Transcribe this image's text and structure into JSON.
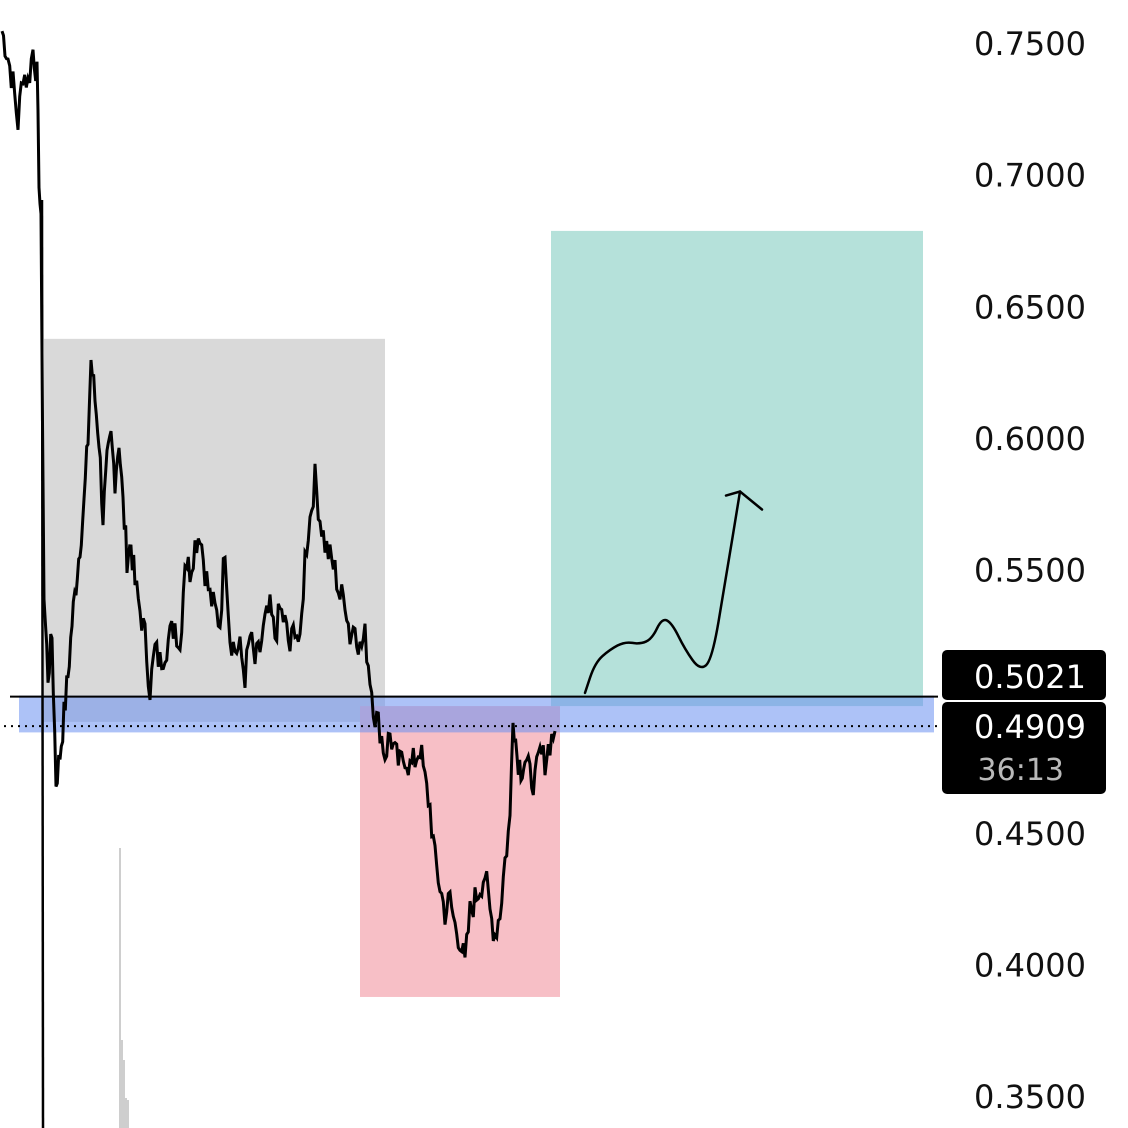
{
  "chart_data": {
    "type": "line",
    "y_axis": {
      "position": "right",
      "ticks": [
        "0.7500",
        "0.7000",
        "0.6500",
        "0.6000",
        "0.5500",
        "0.4500",
        "0.4000",
        "0.3500"
      ],
      "tick_values": [
        0.75,
        0.7,
        0.65,
        0.6,
        0.55,
        0.45,
        0.4,
        0.35
      ],
      "range": [
        0.34,
        0.765
      ]
    },
    "price_series": {
      "color": "#000000",
      "anchors": [
        [
          2,
          0.755
        ],
        [
          8,
          0.745
        ],
        [
          13,
          0.735
        ],
        [
          18,
          0.72
        ],
        [
          23,
          0.74
        ],
        [
          28,
          0.735
        ],
        [
          33,
          0.748
        ],
        [
          37,
          0.738
        ],
        [
          39,
          0.7
        ],
        [
          41,
          0.68
        ],
        [
          44,
          0.54
        ],
        [
          48,
          0.51
        ],
        [
          52,
          0.525
        ],
        [
          56,
          0.47
        ],
        [
          60,
          0.48
        ],
        [
          64,
          0.495
        ],
        [
          68,
          0.51
        ],
        [
          72,
          0.53
        ],
        [
          76,
          0.545
        ],
        [
          80,
          0.56
        ],
        [
          84,
          0.575
        ],
        [
          88,
          0.6
        ],
        [
          91,
          0.63
        ],
        [
          95,
          0.615
        ],
        [
          99,
          0.6
        ],
        [
          103,
          0.57
        ],
        [
          107,
          0.59
        ],
        [
          111,
          0.6
        ],
        [
          115,
          0.585
        ],
        [
          119,
          0.6
        ],
        [
          123,
          0.575
        ],
        [
          127,
          0.555
        ],
        [
          131,
          0.56
        ],
        [
          135,
          0.545
        ],
        [
          140,
          0.535
        ],
        [
          145,
          0.525
        ],
        [
          150,
          0.505
        ],
        [
          155,
          0.52
        ],
        [
          160,
          0.515
        ],
        [
          165,
          0.52
        ],
        [
          170,
          0.525
        ],
        [
          175,
          0.53
        ],
        [
          180,
          0.52
        ],
        [
          185,
          0.555
        ],
        [
          190,
          0.55
        ],
        [
          195,
          0.56
        ],
        [
          200,
          0.565
        ],
        [
          205,
          0.55
        ],
        [
          210,
          0.54
        ],
        [
          215,
          0.535
        ],
        [
          220,
          0.53
        ],
        [
          225,
          0.56
        ],
        [
          230,
          0.525
        ],
        [
          235,
          0.52
        ],
        [
          240,
          0.52
        ],
        [
          245,
          0.51
        ],
        [
          250,
          0.525
        ],
        [
          255,
          0.515
        ],
        [
          260,
          0.52
        ],
        [
          265,
          0.53
        ],
        [
          270,
          0.535
        ],
        [
          275,
          0.525
        ],
        [
          280,
          0.535
        ],
        [
          285,
          0.53
        ],
        [
          290,
          0.52
        ],
        [
          295,
          0.53
        ],
        [
          300,
          0.52
        ],
        [
          305,
          0.555
        ],
        [
          310,
          0.57
        ],
        [
          315,
          0.585
        ],
        [
          320,
          0.57
        ],
        [
          325,
          0.56
        ],
        [
          330,
          0.555
        ],
        [
          335,
          0.55
        ],
        [
          340,
          0.54
        ],
        [
          345,
          0.54
        ],
        [
          350,
          0.525
        ],
        [
          355,
          0.53
        ],
        [
          360,
          0.52
        ],
        [
          365,
          0.525
        ],
        [
          370,
          0.51
        ],
        [
          375,
          0.495
        ],
        [
          380,
          0.49
        ],
        [
          385,
          0.48
        ],
        [
          390,
          0.488
        ],
        [
          395,
          0.48
        ],
        [
          400,
          0.476
        ],
        [
          405,
          0.48
        ],
        [
          410,
          0.475
        ],
        [
          415,
          0.478
        ],
        [
          420,
          0.483
        ],
        [
          425,
          0.47
        ],
        [
          430,
          0.46
        ],
        [
          435,
          0.44
        ],
        [
          440,
          0.43
        ],
        [
          445,
          0.42
        ],
        [
          450,
          0.425
        ],
        [
          455,
          0.415
        ],
        [
          460,
          0.41
        ],
        [
          465,
          0.4
        ],
        [
          470,
          0.42
        ],
        [
          475,
          0.425
        ],
        [
          480,
          0.43
        ],
        [
          485,
          0.435
        ],
        [
          490,
          0.42
        ],
        [
          495,
          0.412
        ],
        [
          500,
          0.42
        ],
        [
          505,
          0.44
        ],
        [
          510,
          0.455
        ],
        [
          513,
          0.497
        ],
        [
          517,
          0.48
        ],
        [
          521,
          0.475
        ],
        [
          525,
          0.478
        ],
        [
          530,
          0.472
        ],
        [
          535,
          0.47
        ],
        [
          540,
          0.48
        ],
        [
          545,
          0.478
        ],
        [
          550,
          0.485
        ],
        [
          555,
          0.489
        ]
      ]
    },
    "horizontal_line": {
      "value": 0.5021,
      "color": "#000000",
      "style": "solid"
    },
    "current_price_line": {
      "value": 0.4909,
      "color": "#000000",
      "style": "dotted"
    },
    "zones": [
      {
        "name": "consolidation-range",
        "y_range": [
          0.4925,
          0.638
        ],
        "color": "#d9d9d9"
      },
      {
        "name": "support-band",
        "y_range": [
          0.4885,
          0.5025
        ],
        "color": "#6a8ff0"
      },
      {
        "name": "drawdown-zone",
        "y_range": [
          0.388,
          0.4985
        ],
        "color": "#f7bfc6"
      },
      {
        "name": "target-zone",
        "y_range": [
          0.4985,
          0.679
        ],
        "color": "#b5e1da"
      }
    ],
    "projection": {
      "path_values": [
        [
          585,
          0.5035
        ],
        [
          595,
          0.515
        ],
        [
          610,
          0.52
        ],
        [
          625,
          0.523
        ],
        [
          640,
          0.522
        ],
        [
          652,
          0.524
        ],
        [
          662,
          0.532
        ],
        [
          672,
          0.53
        ],
        [
          685,
          0.52
        ],
        [
          700,
          0.512
        ],
        [
          712,
          0.516
        ],
        [
          725,
          0.545
        ],
        [
          740,
          0.58
        ]
      ],
      "arrow": true
    },
    "price_badges": [
      {
        "text": "0.5021"
      },
      {
        "text": "0.4909",
        "subtext": "36:13"
      }
    ],
    "volume_bars_x": [
      120,
      122,
      124,
      126,
      128
    ]
  }
}
